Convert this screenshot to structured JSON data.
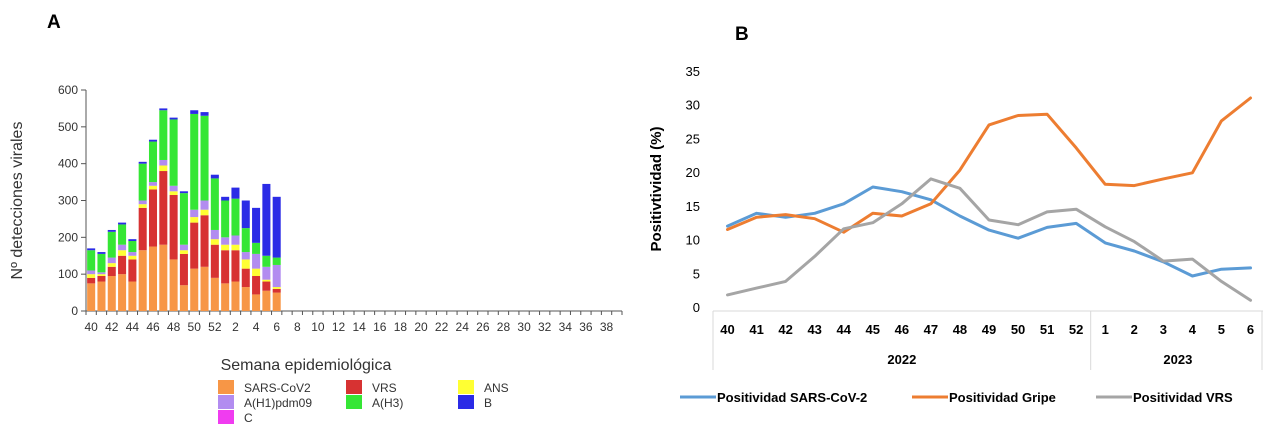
{
  "panels": {
    "a_label": "A",
    "b_label": "B"
  },
  "chart_data": [
    {
      "type": "bar",
      "stacked": true,
      "xlabel": "Semana epidemiológica",
      "ylabel": "Nº detecciones virales",
      "ylim": [
        0,
        600
      ],
      "yticks": [
        0,
        100,
        200,
        300,
        400,
        500,
        600
      ],
      "weeks": [
        "40",
        "41",
        "42",
        "43",
        "44",
        "45",
        "46",
        "47",
        "48",
        "49",
        "50",
        "51",
        "52",
        "1",
        "2",
        "3",
        "4",
        "5",
        "6"
      ],
      "tick_labels": [
        "40",
        "42",
        "44",
        "46",
        "48",
        "50",
        "52",
        "2",
        "4",
        "6",
        "8",
        "10",
        "12",
        "14",
        "16",
        "18",
        "20",
        "22",
        "24",
        "26",
        "28",
        "30",
        "32",
        "34",
        "36",
        "38"
      ],
      "legend_position": "bottom",
      "series": [
        {
          "name": "SARS-CoV2",
          "color": "#f79646",
          "values": [
            75,
            80,
            95,
            100,
            80,
            165,
            175,
            180,
            140,
            70,
            115,
            120,
            90,
            75,
            80,
            65,
            45,
            55,
            50
          ]
        },
        {
          "name": "VRS",
          "color": "#d73232",
          "values": [
            15,
            15,
            25,
            50,
            60,
            115,
            155,
            200,
            175,
            85,
            125,
            140,
            90,
            90,
            85,
            50,
            50,
            25,
            10
          ]
        },
        {
          "name": "ANS",
          "color": "#ffff33",
          "values": [
            10,
            5,
            10,
            15,
            10,
            10,
            10,
            15,
            10,
            10,
            15,
            15,
            15,
            15,
            15,
            25,
            20,
            5,
            5
          ]
        },
        {
          "name": "A(H1)pdm09",
          "color": "#b28cf0",
          "values": [
            10,
            5,
            15,
            15,
            10,
            10,
            10,
            15,
            15,
            15,
            20,
            25,
            25,
            20,
            25,
            20,
            40,
            35,
            60
          ]
        },
        {
          "name": "A(H3)",
          "color": "#35e635",
          "values": [
            55,
            50,
            70,
            55,
            30,
            100,
            110,
            135,
            180,
            140,
            260,
            230,
            140,
            100,
            100,
            65,
            30,
            30,
            20
          ]
        },
        {
          "name": "B",
          "color": "#2b2be6",
          "values": [
            5,
            5,
            5,
            5,
            5,
            5,
            5,
            5,
            5,
            5,
            10,
            10,
            10,
            10,
            30,
            75,
            95,
            195,
            165
          ]
        },
        {
          "name": "C",
          "color": "#f03cf0",
          "values": [
            0,
            0,
            0,
            0,
            0,
            0,
            0,
            0,
            0,
            0,
            0,
            0,
            0,
            0,
            0,
            0,
            0,
            0,
            0
          ]
        }
      ]
    },
    {
      "type": "line",
      "ylabel": "Positivtividad (%)",
      "ylim": [
        0,
        35
      ],
      "yticks": [
        0,
        5,
        10,
        15,
        20,
        25,
        30,
        35
      ],
      "categories": [
        "40",
        "41",
        "42",
        "43",
        "44",
        "45",
        "46",
        "47",
        "48",
        "49",
        "50",
        "51",
        "52",
        "1",
        "2",
        "3",
        "4",
        "5",
        "6"
      ],
      "year_groups": [
        {
          "label": "2022",
          "count": 13
        },
        {
          "label": "2023",
          "count": 6
        }
      ],
      "legend_position": "bottom",
      "series": [
        {
          "name": "Positividad SARS-CoV-2",
          "color": "#5b9bd5",
          "values": [
            12,
            13.9,
            13.3,
            13.9,
            15.3,
            17.8,
            17.1,
            15.9,
            13.5,
            11.4,
            10.2,
            11.8,
            12.4,
            9.5,
            8.3,
            6.7,
            4.6,
            5.6,
            5.8
          ]
        },
        {
          "name": "Positividad Gripe",
          "color": "#ed7d31",
          "values": [
            11.5,
            13.3,
            13.7,
            13.1,
            11.1,
            13.9,
            13.5,
            15.3,
            20.3,
            27,
            28.4,
            28.6,
            23.6,
            18.2,
            18,
            19,
            19.9,
            27.6,
            31
          ]
        },
        {
          "name": "Positividad VRS",
          "color": "#a5a5a5",
          "values": [
            1.8,
            2.8,
            3.8,
            7.5,
            11.6,
            12.5,
            15.3,
            19,
            17.6,
            12.9,
            12.2,
            14.1,
            14.5,
            11.9,
            9.7,
            6.8,
            7.1,
            3.8,
            1
          ]
        }
      ]
    }
  ]
}
